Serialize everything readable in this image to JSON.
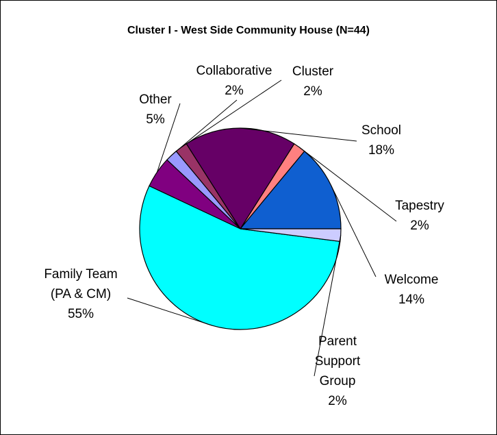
{
  "chart_data": {
    "type": "pie",
    "title": "Cluster I - West Side Community House (N=44)",
    "start_angle_deg": 0,
    "direction": "counterclockwise",
    "slices": [
      {
        "label_lines": [
          "Welcome"
        ],
        "percent_label": "14%",
        "value": 14,
        "color": "#0f5fd0"
      },
      {
        "label_lines": [
          "Tapestry"
        ],
        "percent_label": "2%",
        "value": 2,
        "color": "#ff8080"
      },
      {
        "label_lines": [
          "School"
        ],
        "percent_label": "18%",
        "value": 18,
        "color": "#660066"
      },
      {
        "label_lines": [
          "Cluster"
        ],
        "percent_label": "2%",
        "value": 2,
        "color": "#993366"
      },
      {
        "label_lines": [
          "Collaborative"
        ],
        "percent_label": "2%",
        "value": 2,
        "color": "#9999ff"
      },
      {
        "label_lines": [
          "Other"
        ],
        "percent_label": "5%",
        "value": 5,
        "color": "#800080"
      },
      {
        "label_lines": [
          "Family Team",
          "(PA & CM)"
        ],
        "percent_label": "55%",
        "value": 55,
        "color": "#00ffff"
      },
      {
        "label_lines": [
          "Parent",
          "Support",
          "Group"
        ],
        "percent_label": "2%",
        "value": 2,
        "color": "#ccccff"
      }
    ]
  }
}
